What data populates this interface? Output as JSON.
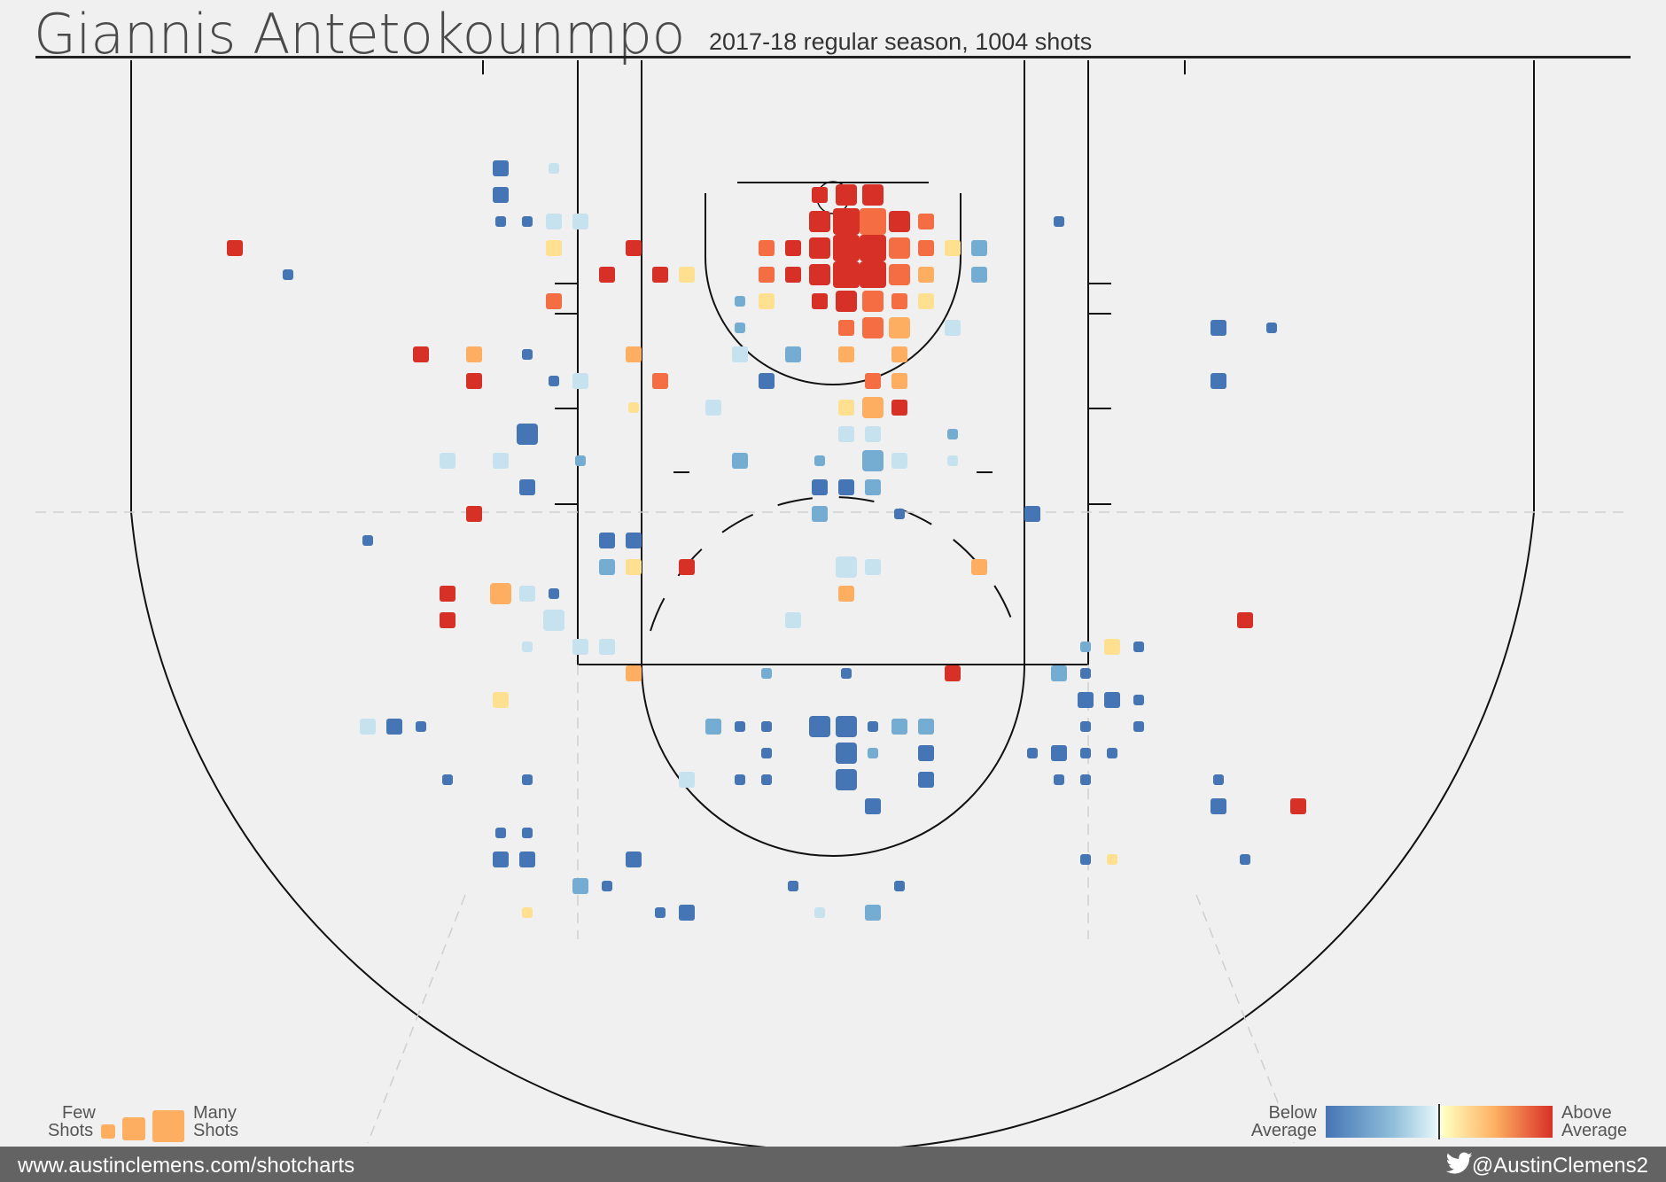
{
  "header": {
    "title": "Giannis Antetokounmpo",
    "subtitle": "2017-18 regular season, 1004 shots"
  },
  "legend": {
    "size_low": "Few",
    "size_low_2": "Shots",
    "size_high": "Many",
    "size_high_2": "Shots",
    "color_low": "Below",
    "color_low_2": "Average",
    "color_high": "Above",
    "color_high_2": "Average"
  },
  "footer": {
    "url": "www.austinclemens.com/shotcharts",
    "handle": "@AustinClemens2",
    "twitter_icon": "twitter-bird-icon"
  },
  "colors": {
    "background": "#eff0ef",
    "well_below": "#4575b4",
    "below": "#74add1",
    "slightly_below": "#c6e2ef",
    "slightly_above": "#fee090",
    "above": "#fdae61",
    "well_above": "#f46d43",
    "far_above": "#d73027"
  },
  "chart_data": {
    "type": "heatmap",
    "title": "Giannis Antetokounmpo",
    "subtitle": "2017-18 regular season, 1004 shots",
    "x_unit": "feet from left sideline",
    "y_unit": "feet from baseline",
    "xlim": [
      0,
      50
    ],
    "ylim": [
      0,
      32
    ],
    "size_scale": "relative shot count (1 = few, 4 = many)",
    "color_scale": [
      "well_below",
      "below",
      "slightly_below",
      "slightly_above",
      "above",
      "well_above",
      "far_above"
    ],
    "cells": [
      {
        "x": 12.5,
        "y": 3.5,
        "size": 2,
        "color": "well_below"
      },
      {
        "x": 14.5,
        "y": 3.5,
        "size": 1,
        "color": "slightly_below"
      },
      {
        "x": 12.5,
        "y": 4.5,
        "size": 2,
        "color": "well_below"
      },
      {
        "x": 12.5,
        "y": 5.5,
        "size": 1,
        "color": "well_below"
      },
      {
        "x": 13.5,
        "y": 5.5,
        "size": 1,
        "color": "well_below"
      },
      {
        "x": 14.5,
        "y": 5.5,
        "size": 2,
        "color": "slightly_below"
      },
      {
        "x": 15.5,
        "y": 5.5,
        "size": 2,
        "color": "slightly_below"
      },
      {
        "x": 2.5,
        "y": 6.5,
        "size": 2,
        "color": "far_above"
      },
      {
        "x": 14.5,
        "y": 6.5,
        "size": 2,
        "color": "slightly_above"
      },
      {
        "x": 4.5,
        "y": 7.5,
        "size": 1,
        "color": "well_below"
      },
      {
        "x": 14.5,
        "y": 8.5,
        "size": 2,
        "color": "well_above"
      },
      {
        "x": 9.5,
        "y": 10.5,
        "size": 2,
        "color": "far_above"
      },
      {
        "x": 11.5,
        "y": 10.5,
        "size": 2,
        "color": "above"
      },
      {
        "x": 13.5,
        "y": 10.5,
        "size": 1,
        "color": "well_below"
      },
      {
        "x": 11.5,
        "y": 11.5,
        "size": 2,
        "color": "far_above"
      },
      {
        "x": 14.5,
        "y": 11.5,
        "size": 1,
        "color": "well_below"
      },
      {
        "x": 15.5,
        "y": 11.5,
        "size": 2,
        "color": "slightly_below"
      },
      {
        "x": 13.5,
        "y": 13.5,
        "size": 3,
        "color": "well_below"
      },
      {
        "x": 10.5,
        "y": 14.5,
        "size": 2,
        "color": "slightly_below"
      },
      {
        "x": 12.5,
        "y": 14.5,
        "size": 2,
        "color": "slightly_below"
      },
      {
        "x": 15.5,
        "y": 14.5,
        "size": 1,
        "color": "below"
      },
      {
        "x": 13.5,
        "y": 15.5,
        "size": 2,
        "color": "well_below"
      },
      {
        "x": 11.5,
        "y": 16.5,
        "size": 2,
        "color": "far_above"
      },
      {
        "x": 7.5,
        "y": 17.5,
        "size": 1,
        "color": "well_below"
      },
      {
        "x": 10.5,
        "y": 19.5,
        "size": 2,
        "color": "far_above"
      },
      {
        "x": 12.5,
        "y": 19.5,
        "size": 3,
        "color": "above"
      },
      {
        "x": 13.5,
        "y": 19.5,
        "size": 2,
        "color": "slightly_below"
      },
      {
        "x": 14.5,
        "y": 19.5,
        "size": 1,
        "color": "well_below"
      },
      {
        "x": 10.5,
        "y": 20.5,
        "size": 2,
        "color": "far_above"
      },
      {
        "x": 14.5,
        "y": 20.5,
        "size": 3,
        "color": "slightly_below"
      },
      {
        "x": 13.5,
        "y": 21.5,
        "size": 1,
        "color": "slightly_below"
      },
      {
        "x": 15.5,
        "y": 21.5,
        "size": 2,
        "color": "slightly_below"
      },
      {
        "x": 16.5,
        "y": 21.5,
        "size": 2,
        "color": "slightly_below"
      },
      {
        "x": 12.5,
        "y": 23.5,
        "size": 2,
        "color": "slightly_above"
      },
      {
        "x": 7.5,
        "y": 24.5,
        "size": 2,
        "color": "slightly_below"
      },
      {
        "x": 8.5,
        "y": 24.5,
        "size": 2,
        "color": "well_below"
      },
      {
        "x": 9.5,
        "y": 24.5,
        "size": 1,
        "color": "well_below"
      },
      {
        "x": 10.5,
        "y": 26.5,
        "size": 1,
        "color": "well_below"
      },
      {
        "x": 13.5,
        "y": 26.5,
        "size": 1,
        "color": "well_below"
      },
      {
        "x": 12.5,
        "y": 28.5,
        "size": 1,
        "color": "well_below"
      },
      {
        "x": 13.5,
        "y": 28.5,
        "size": 1,
        "color": "well_below"
      },
      {
        "x": 12.5,
        "y": 29.5,
        "size": 2,
        "color": "well_below"
      },
      {
        "x": 13.5,
        "y": 29.5,
        "size": 2,
        "color": "well_below"
      },
      {
        "x": 15.5,
        "y": 30.5,
        "size": 2,
        "color": "below"
      },
      {
        "x": 13.5,
        "y": 31.5,
        "size": 1,
        "color": "slightly_above"
      },
      {
        "x": 17.5,
        "y": 6.5,
        "size": 2,
        "color": "far_above"
      },
      {
        "x": 16.5,
        "y": 7.5,
        "size": 2,
        "color": "far_above"
      },
      {
        "x": 18.5,
        "y": 7.5,
        "size": 2,
        "color": "far_above"
      },
      {
        "x": 19.5,
        "y": 7.5,
        "size": 2,
        "color": "slightly_above"
      },
      {
        "x": 17.5,
        "y": 10.5,
        "size": 2,
        "color": "above"
      },
      {
        "x": 18.5,
        "y": 11.5,
        "size": 2,
        "color": "well_above"
      },
      {
        "x": 17.5,
        "y": 12.5,
        "size": 1,
        "color": "slightly_above"
      },
      {
        "x": 16.5,
        "y": 17.5,
        "size": 2,
        "color": "well_below"
      },
      {
        "x": 17.5,
        "y": 17.5,
        "size": 2,
        "color": "well_below"
      },
      {
        "x": 16.5,
        "y": 18.5,
        "size": 2,
        "color": "below"
      },
      {
        "x": 17.5,
        "y": 18.5,
        "size": 2,
        "color": "slightly_above"
      },
      {
        "x": 17.5,
        "y": 22.5,
        "size": 2,
        "color": "above"
      },
      {
        "x": 17.5,
        "y": 29.5,
        "size": 2,
        "color": "well_below"
      },
      {
        "x": 16.5,
        "y": 30.5,
        "size": 1,
        "color": "well_below"
      },
      {
        "x": 18.5,
        "y": 31.5,
        "size": 1,
        "color": "well_below"
      },
      {
        "x": 19.5,
        "y": 31.5,
        "size": 2,
        "color": "well_below"
      },
      {
        "x": 19.5,
        "y": 18.5,
        "size": 2,
        "color": "far_above"
      },
      {
        "x": 24.5,
        "y": 4.5,
        "size": 2,
        "color": "far_above"
      },
      {
        "x": 25.5,
        "y": 4.5,
        "size": 3,
        "color": "far_above"
      },
      {
        "x": 26.5,
        "y": 4.5,
        "size": 3,
        "color": "far_above"
      },
      {
        "x": 24.5,
        "y": 5.5,
        "size": 3,
        "color": "far_above"
      },
      {
        "x": 25.5,
        "y": 5.5,
        "size": 4,
        "color": "far_above"
      },
      {
        "x": 26.5,
        "y": 5.5,
        "size": 4,
        "color": "well_above"
      },
      {
        "x": 27.5,
        "y": 5.5,
        "size": 3,
        "color": "far_above"
      },
      {
        "x": 28.5,
        "y": 5.5,
        "size": 2,
        "color": "well_above"
      },
      {
        "x": 22.5,
        "y": 6.5,
        "size": 2,
        "color": "well_above"
      },
      {
        "x": 23.5,
        "y": 6.5,
        "size": 2,
        "color": "far_above"
      },
      {
        "x": 24.5,
        "y": 6.5,
        "size": 3,
        "color": "far_above"
      },
      {
        "x": 25.5,
        "y": 6.5,
        "size": 4,
        "color": "far_above"
      },
      {
        "x": 26.5,
        "y": 6.5,
        "size": 4,
        "color": "far_above"
      },
      {
        "x": 27.5,
        "y": 6.5,
        "size": 3,
        "color": "well_above"
      },
      {
        "x": 28.5,
        "y": 6.5,
        "size": 2,
        "color": "well_above"
      },
      {
        "x": 29.5,
        "y": 6.5,
        "size": 2,
        "color": "slightly_above"
      },
      {
        "x": 30.5,
        "y": 6.5,
        "size": 2,
        "color": "below"
      },
      {
        "x": 22.5,
        "y": 7.5,
        "size": 2,
        "color": "well_above"
      },
      {
        "x": 23.5,
        "y": 7.5,
        "size": 2,
        "color": "far_above"
      },
      {
        "x": 24.5,
        "y": 7.5,
        "size": 3,
        "color": "far_above"
      },
      {
        "x": 25.5,
        "y": 7.5,
        "size": 4,
        "color": "far_above"
      },
      {
        "x": 26.5,
        "y": 7.5,
        "size": 4,
        "color": "far_above"
      },
      {
        "x": 27.5,
        "y": 7.5,
        "size": 3,
        "color": "well_above"
      },
      {
        "x": 28.5,
        "y": 7.5,
        "size": 2,
        "color": "above"
      },
      {
        "x": 30.5,
        "y": 7.5,
        "size": 2,
        "color": "below"
      },
      {
        "x": 21.5,
        "y": 8.5,
        "size": 1,
        "color": "below"
      },
      {
        "x": 22.5,
        "y": 8.5,
        "size": 2,
        "color": "slightly_above"
      },
      {
        "x": 24.5,
        "y": 8.5,
        "size": 2,
        "color": "far_above"
      },
      {
        "x": 25.5,
        "y": 8.5,
        "size": 3,
        "color": "far_above"
      },
      {
        "x": 26.5,
        "y": 8.5,
        "size": 3,
        "color": "well_above"
      },
      {
        "x": 27.5,
        "y": 8.5,
        "size": 2,
        "color": "well_above"
      },
      {
        "x": 28.5,
        "y": 8.5,
        "size": 2,
        "color": "slightly_above"
      },
      {
        "x": 21.5,
        "y": 9.5,
        "size": 1,
        "color": "below"
      },
      {
        "x": 25.5,
        "y": 9.5,
        "size": 2,
        "color": "well_above"
      },
      {
        "x": 26.5,
        "y": 9.5,
        "size": 3,
        "color": "well_above"
      },
      {
        "x": 27.5,
        "y": 9.5,
        "size": 3,
        "color": "above"
      },
      {
        "x": 29.5,
        "y": 9.5,
        "size": 2,
        "color": "slightly_below"
      },
      {
        "x": 21.5,
        "y": 10.5,
        "size": 2,
        "color": "slightly_below"
      },
      {
        "x": 23.5,
        "y": 10.5,
        "size": 2,
        "color": "below"
      },
      {
        "x": 25.5,
        "y": 10.5,
        "size": 2,
        "color": "above"
      },
      {
        "x": 27.5,
        "y": 10.5,
        "size": 2,
        "color": "above"
      },
      {
        "x": 22.5,
        "y": 11.5,
        "size": 2,
        "color": "well_below"
      },
      {
        "x": 26.5,
        "y": 11.5,
        "size": 2,
        "color": "well_above"
      },
      {
        "x": 27.5,
        "y": 11.5,
        "size": 2,
        "color": "above"
      },
      {
        "x": 20.5,
        "y": 12.5,
        "size": 2,
        "color": "slightly_below"
      },
      {
        "x": 25.5,
        "y": 12.5,
        "size": 2,
        "color": "slightly_above"
      },
      {
        "x": 26.5,
        "y": 12.5,
        "size": 3,
        "color": "above"
      },
      {
        "x": 27.5,
        "y": 12.5,
        "size": 2,
        "color": "far_above"
      },
      {
        "x": 25.5,
        "y": 13.5,
        "size": 2,
        "color": "slightly_below"
      },
      {
        "x": 26.5,
        "y": 13.5,
        "size": 2,
        "color": "slightly_below"
      },
      {
        "x": 29.5,
        "y": 13.5,
        "size": 1,
        "color": "below"
      },
      {
        "x": 21.5,
        "y": 14.5,
        "size": 2,
        "color": "below"
      },
      {
        "x": 24.5,
        "y": 14.5,
        "size": 1,
        "color": "below"
      },
      {
        "x": 26.5,
        "y": 14.5,
        "size": 3,
        "color": "below"
      },
      {
        "x": 27.5,
        "y": 14.5,
        "size": 2,
        "color": "slightly_below"
      },
      {
        "x": 29.5,
        "y": 14.5,
        "size": 1,
        "color": "slightly_below"
      },
      {
        "x": 24.5,
        "y": 15.5,
        "size": 2,
        "color": "well_below"
      },
      {
        "x": 25.5,
        "y": 15.5,
        "size": 2,
        "color": "well_below"
      },
      {
        "x": 26.5,
        "y": 15.5,
        "size": 2,
        "color": "below"
      },
      {
        "x": 24.5,
        "y": 16.5,
        "size": 2,
        "color": "below"
      },
      {
        "x": 27.5,
        "y": 16.5,
        "size": 1,
        "color": "well_below"
      },
      {
        "x": 25.5,
        "y": 18.5,
        "size": 3,
        "color": "slightly_below"
      },
      {
        "x": 26.5,
        "y": 18.5,
        "size": 2,
        "color": "slightly_below"
      },
      {
        "x": 30.5,
        "y": 18.5,
        "size": 2,
        "color": "above"
      },
      {
        "x": 25.5,
        "y": 19.5,
        "size": 2,
        "color": "above"
      },
      {
        "x": 23.5,
        "y": 20.5,
        "size": 2,
        "color": "slightly_below"
      },
      {
        "x": 22.5,
        "y": 22.5,
        "size": 1,
        "color": "below"
      },
      {
        "x": 25.5,
        "y": 22.5,
        "size": 1,
        "color": "well_below"
      },
      {
        "x": 29.5,
        "y": 22.5,
        "size": 2,
        "color": "far_above"
      },
      {
        "x": 20.5,
        "y": 24.5,
        "size": 2,
        "color": "below"
      },
      {
        "x": 21.5,
        "y": 24.5,
        "size": 1,
        "color": "well_below"
      },
      {
        "x": 22.5,
        "y": 24.5,
        "size": 1,
        "color": "well_below"
      },
      {
        "x": 24.5,
        "y": 24.5,
        "size": 3,
        "color": "well_below"
      },
      {
        "x": 25.5,
        "y": 24.5,
        "size": 3,
        "color": "well_below"
      },
      {
        "x": 26.5,
        "y": 24.5,
        "size": 1,
        "color": "well_below"
      },
      {
        "x": 27.5,
        "y": 24.5,
        "size": 2,
        "color": "below"
      },
      {
        "x": 28.5,
        "y": 24.5,
        "size": 2,
        "color": "below"
      },
      {
        "x": 22.5,
        "y": 25.5,
        "size": 1,
        "color": "well_below"
      },
      {
        "x": 25.5,
        "y": 25.5,
        "size": 3,
        "color": "well_below"
      },
      {
        "x": 26.5,
        "y": 25.5,
        "size": 1,
        "color": "below"
      },
      {
        "x": 28.5,
        "y": 25.5,
        "size": 2,
        "color": "well_below"
      },
      {
        "x": 19.5,
        "y": 26.5,
        "size": 2,
        "color": "slightly_below"
      },
      {
        "x": 21.5,
        "y": 26.5,
        "size": 1,
        "color": "well_below"
      },
      {
        "x": 22.5,
        "y": 26.5,
        "size": 1,
        "color": "well_below"
      },
      {
        "x": 25.5,
        "y": 26.5,
        "size": 3,
        "color": "well_below"
      },
      {
        "x": 28.5,
        "y": 26.5,
        "size": 2,
        "color": "well_below"
      },
      {
        "x": 26.5,
        "y": 27.5,
        "size": 2,
        "color": "well_below"
      },
      {
        "x": 23.5,
        "y": 30.5,
        "size": 1,
        "color": "well_below"
      },
      {
        "x": 27.5,
        "y": 30.5,
        "size": 1,
        "color": "well_below"
      },
      {
        "x": 24.5,
        "y": 31.5,
        "size": 1,
        "color": "slightly_below"
      },
      {
        "x": 26.5,
        "y": 31.5,
        "size": 2,
        "color": "below"
      },
      {
        "x": 33.5,
        "y": 5.5,
        "size": 1,
        "color": "well_below"
      },
      {
        "x": 32.5,
        "y": 16.5,
        "size": 2,
        "color": "well_below"
      },
      {
        "x": 34.5,
        "y": 21.5,
        "size": 1,
        "color": "below"
      },
      {
        "x": 35.5,
        "y": 21.5,
        "size": 2,
        "color": "slightly_above"
      },
      {
        "x": 36.5,
        "y": 21.5,
        "size": 1,
        "color": "well_below"
      },
      {
        "x": 33.5,
        "y": 22.5,
        "size": 2,
        "color": "below"
      },
      {
        "x": 34.5,
        "y": 22.5,
        "size": 1,
        "color": "well_below"
      },
      {
        "x": 34.5,
        "y": 23.5,
        "size": 2,
        "color": "well_below"
      },
      {
        "x": 35.5,
        "y": 23.5,
        "size": 2,
        "color": "well_below"
      },
      {
        "x": 36.5,
        "y": 23.5,
        "size": 1,
        "color": "well_below"
      },
      {
        "x": 34.5,
        "y": 24.5,
        "size": 1,
        "color": "well_below"
      },
      {
        "x": 36.5,
        "y": 24.5,
        "size": 1,
        "color": "well_below"
      },
      {
        "x": 32.5,
        "y": 25.5,
        "size": 1,
        "color": "well_below"
      },
      {
        "x": 33.5,
        "y": 25.5,
        "size": 2,
        "color": "well_below"
      },
      {
        "x": 34.5,
        "y": 25.5,
        "size": 1,
        "color": "well_below"
      },
      {
        "x": 35.5,
        "y": 25.5,
        "size": 1,
        "color": "well_below"
      },
      {
        "x": 33.5,
        "y": 26.5,
        "size": 1,
        "color": "well_below"
      },
      {
        "x": 34.5,
        "y": 26.5,
        "size": 1,
        "color": "well_below"
      },
      {
        "x": 34.5,
        "y": 29.5,
        "size": 1,
        "color": "well_below"
      },
      {
        "x": 35.5,
        "y": 29.5,
        "size": 1,
        "color": "slightly_above"
      },
      {
        "x": 39.5,
        "y": 9.5,
        "size": 2,
        "color": "well_below"
      },
      {
        "x": 41.5,
        "y": 9.5,
        "size": 1,
        "color": "well_below"
      },
      {
        "x": 39.5,
        "y": 11.5,
        "size": 2,
        "color": "well_below"
      },
      {
        "x": 40.5,
        "y": 20.5,
        "size": 2,
        "color": "far_above"
      },
      {
        "x": 39.5,
        "y": 26.5,
        "size": 1,
        "color": "well_below"
      },
      {
        "x": 39.5,
        "y": 27.5,
        "size": 2,
        "color": "well_below"
      },
      {
        "x": 42.5,
        "y": 27.5,
        "size": 2,
        "color": "far_above"
      },
      {
        "x": 40.5,
        "y": 29.5,
        "size": 1,
        "color": "well_below"
      }
    ]
  }
}
